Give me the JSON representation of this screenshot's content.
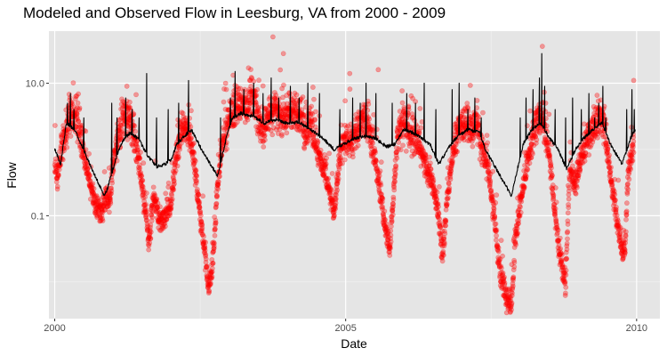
{
  "chart_data": {
    "type": "scatter",
    "title": "Modeled and Observed Flow in Leesburg, VA from 2000 - 2009",
    "xlabel": "Date",
    "ylabel": "Flow",
    "y_scale": "log10",
    "xlim": [
      1999.9,
      2010.4
    ],
    "ylim": [
      0.0028,
      61
    ],
    "x_ticks": [
      {
        "value": 2000,
        "label": "2000"
      },
      {
        "value": 2005,
        "label": "2005"
      },
      {
        "value": 2010,
        "label": "2010"
      }
    ],
    "y_ticks": [
      {
        "value": 0.1,
        "label": "0.1"
      },
      {
        "value": 10,
        "label": "10.0"
      }
    ],
    "grid": true,
    "panel_background": "#e5e5e5",
    "colors": {
      "observed_points": "#ff0000",
      "modeled_line": "#000000"
    },
    "series": [
      {
        "kind": "points",
        "opacity": 0.35,
        "description_of_pattern": "daily observations",
        "anchors": [
          {
            "x": 2000.0,
            "y": 0.6
          },
          {
            "x": 2000.05,
            "y": 0.35
          },
          {
            "x": 2000.12,
            "y": 1.2
          },
          {
            "x": 2000.2,
            "y": 2.0
          },
          {
            "x": 2000.28,
            "y": 4.0
          },
          {
            "x": 2000.4,
            "y": 2.5
          },
          {
            "x": 2000.5,
            "y": 0.8
          },
          {
            "x": 2000.6,
            "y": 0.3
          },
          {
            "x": 2000.7,
            "y": 0.15
          },
          {
            "x": 2000.8,
            "y": 0.12
          },
          {
            "x": 2000.88,
            "y": 0.2
          },
          {
            "x": 2000.95,
            "y": 0.15
          },
          {
            "x": 2001.0,
            "y": 0.6
          },
          {
            "x": 2001.1,
            "y": 1.5
          },
          {
            "x": 2001.2,
            "y": 3.5
          },
          {
            "x": 2001.3,
            "y": 3.0
          },
          {
            "x": 2001.4,
            "y": 1.2
          },
          {
            "x": 2001.5,
            "y": 0.3
          },
          {
            "x": 2001.62,
            "y": 0.04
          },
          {
            "x": 2001.7,
            "y": 0.2
          },
          {
            "x": 2001.8,
            "y": 0.08
          },
          {
            "x": 2001.9,
            "y": 0.1
          },
          {
            "x": 2002.0,
            "y": 0.15
          },
          {
            "x": 2002.1,
            "y": 1.0
          },
          {
            "x": 2002.2,
            "y": 2.5
          },
          {
            "x": 2002.3,
            "y": 1.8
          },
          {
            "x": 2002.4,
            "y": 0.6
          },
          {
            "x": 2002.5,
            "y": 0.1
          },
          {
            "x": 2002.6,
            "y": 0.02
          },
          {
            "x": 2002.65,
            "y": 0.008
          },
          {
            "x": 2002.72,
            "y": 0.02
          },
          {
            "x": 2002.8,
            "y": 0.3
          },
          {
            "x": 2002.9,
            "y": 1.5
          },
          {
            "x": 2003.0,
            "y": 3.0
          },
          {
            "x": 2003.15,
            "y": 5.0
          },
          {
            "x": 2003.3,
            "y": 4.5
          },
          {
            "x": 2003.4,
            "y": 6.0
          },
          {
            "x": 2003.5,
            "y": 3.0
          },
          {
            "x": 2003.6,
            "y": 2.0
          },
          {
            "x": 2003.7,
            "y": 3.5
          },
          {
            "x": 2003.8,
            "y": 4.0
          },
          {
            "x": 2003.9,
            "y": 2.5
          },
          {
            "x": 2004.0,
            "y": 3.5
          },
          {
            "x": 2004.1,
            "y": 4.0
          },
          {
            "x": 2004.2,
            "y": 3.0
          },
          {
            "x": 2004.3,
            "y": 2.0
          },
          {
            "x": 2004.4,
            "y": 2.5
          },
          {
            "x": 2004.5,
            "y": 1.2
          },
          {
            "x": 2004.6,
            "y": 0.6
          },
          {
            "x": 2004.7,
            "y": 0.3
          },
          {
            "x": 2004.8,
            "y": 0.1
          },
          {
            "x": 2004.9,
            "y": 0.8
          },
          {
            "x": 2005.0,
            "y": 1.5
          },
          {
            "x": 2005.1,
            "y": 1.2
          },
          {
            "x": 2005.2,
            "y": 2.0
          },
          {
            "x": 2005.3,
            "y": 3.0
          },
          {
            "x": 2005.4,
            "y": 2.0
          },
          {
            "x": 2005.5,
            "y": 0.8
          },
          {
            "x": 2005.6,
            "y": 0.2
          },
          {
            "x": 2005.7,
            "y": 0.05
          },
          {
            "x": 2005.76,
            "y": 0.035
          },
          {
            "x": 2005.82,
            "y": 0.2
          },
          {
            "x": 2005.9,
            "y": 2.0
          },
          {
            "x": 2006.0,
            "y": 2.5
          },
          {
            "x": 2006.1,
            "y": 2.0
          },
          {
            "x": 2006.2,
            "y": 1.5
          },
          {
            "x": 2006.3,
            "y": 1.0
          },
          {
            "x": 2006.4,
            "y": 0.5
          },
          {
            "x": 2006.5,
            "y": 0.3
          },
          {
            "x": 2006.6,
            "y": 0.1
          },
          {
            "x": 2006.66,
            "y": 0.02
          },
          {
            "x": 2006.75,
            "y": 0.2
          },
          {
            "x": 2006.85,
            "y": 1.0
          },
          {
            "x": 2006.95,
            "y": 2.0
          },
          {
            "x": 2007.05,
            "y": 2.5
          },
          {
            "x": 2007.15,
            "y": 2.0
          },
          {
            "x": 2007.25,
            "y": 3.0
          },
          {
            "x": 2007.35,
            "y": 1.0
          },
          {
            "x": 2007.45,
            "y": 0.5
          },
          {
            "x": 2007.55,
            "y": 0.1
          },
          {
            "x": 2007.65,
            "y": 0.015
          },
          {
            "x": 2007.75,
            "y": 0.006
          },
          {
            "x": 2007.85,
            "y": 0.0045
          },
          {
            "x": 2007.92,
            "y": 0.05
          },
          {
            "x": 2008.0,
            "y": 0.15
          },
          {
            "x": 2008.1,
            "y": 0.5
          },
          {
            "x": 2008.2,
            "y": 1.5
          },
          {
            "x": 2008.3,
            "y": 3.0
          },
          {
            "x": 2008.4,
            "y": 2.5
          },
          {
            "x": 2008.5,
            "y": 0.8
          },
          {
            "x": 2008.6,
            "y": 0.1
          },
          {
            "x": 2008.7,
            "y": 0.02
          },
          {
            "x": 2008.78,
            "y": 0.01
          },
          {
            "x": 2008.85,
            "y": 0.5
          },
          {
            "x": 2008.95,
            "y": 0.3
          },
          {
            "x": 2009.05,
            "y": 0.8
          },
          {
            "x": 2009.15,
            "y": 1.5
          },
          {
            "x": 2009.25,
            "y": 2.0
          },
          {
            "x": 2009.35,
            "y": 3.5
          },
          {
            "x": 2009.45,
            "y": 2.0
          },
          {
            "x": 2009.55,
            "y": 0.4
          },
          {
            "x": 2009.65,
            "y": 0.1
          },
          {
            "x": 2009.75,
            "y": 0.03
          },
          {
            "x": 2009.8,
            "y": 0.03
          },
          {
            "x": 2009.85,
            "y": 0.4
          },
          {
            "x": 2009.95,
            "y": 1.2
          }
        ],
        "outliers": [
          {
            "x": 2003.75,
            "y": 50
          },
          {
            "x": 2003.33,
            "y": 17
          },
          {
            "x": 2003.93,
            "y": 28
          },
          {
            "x": 2005.07,
            "y": 14
          },
          {
            "x": 2005.56,
            "y": 16
          },
          {
            "x": 2008.38,
            "y": 36
          },
          {
            "x": 2001.24,
            "y": 9
          },
          {
            "x": 2009.95,
            "y": 11
          }
        ]
      },
      {
        "kind": "line",
        "description_of_pattern": "modeled flow",
        "baseline": [
          {
            "x": 2000.0,
            "y": 1.0
          },
          {
            "x": 2000.05,
            "y": 0.8
          },
          {
            "x": 2000.1,
            "y": 0.6
          },
          {
            "x": 2000.2,
            "y": 2.5
          },
          {
            "x": 2000.35,
            "y": 2.0
          },
          {
            "x": 2000.45,
            "y": 1.2
          },
          {
            "x": 2000.85,
            "y": 0.2
          },
          {
            "x": 2000.9,
            "y": 0.25
          },
          {
            "x": 2001.0,
            "y": 0.5
          },
          {
            "x": 2001.1,
            "y": 1.0
          },
          {
            "x": 2001.2,
            "y": 1.5
          },
          {
            "x": 2001.3,
            "y": 1.8
          },
          {
            "x": 2001.45,
            "y": 1.4
          },
          {
            "x": 2001.6,
            "y": 0.8
          },
          {
            "x": 2001.75,
            "y": 0.55
          },
          {
            "x": 2001.9,
            "y": 0.6
          },
          {
            "x": 2002.0,
            "y": 0.7
          },
          {
            "x": 2002.1,
            "y": 1.2
          },
          {
            "x": 2002.2,
            "y": 1.5
          },
          {
            "x": 2002.35,
            "y": 2.0
          },
          {
            "x": 2002.55,
            "y": 0.9
          },
          {
            "x": 2002.8,
            "y": 0.4
          },
          {
            "x": 2002.95,
            "y": 1.5
          },
          {
            "x": 2003.05,
            "y": 3.0
          },
          {
            "x": 2003.2,
            "y": 3.5
          },
          {
            "x": 2003.4,
            "y": 3.2
          },
          {
            "x": 2003.6,
            "y": 2.5
          },
          {
            "x": 2003.8,
            "y": 2.8
          },
          {
            "x": 2004.0,
            "y": 2.5
          },
          {
            "x": 2004.2,
            "y": 2.6
          },
          {
            "x": 2004.4,
            "y": 2.0
          },
          {
            "x": 2004.6,
            "y": 1.5
          },
          {
            "x": 2004.8,
            "y": 1.0
          },
          {
            "x": 2004.95,
            "y": 1.2
          },
          {
            "x": 2005.1,
            "y": 1.4
          },
          {
            "x": 2005.3,
            "y": 1.6
          },
          {
            "x": 2005.5,
            "y": 1.5
          },
          {
            "x": 2005.7,
            "y": 1.1
          },
          {
            "x": 2005.85,
            "y": 1.2
          },
          {
            "x": 2006.0,
            "y": 2.0
          },
          {
            "x": 2006.15,
            "y": 1.8
          },
          {
            "x": 2006.3,
            "y": 1.5
          },
          {
            "x": 2006.45,
            "y": 1.2
          },
          {
            "x": 2006.6,
            "y": 0.6
          },
          {
            "x": 2006.75,
            "y": 1.0
          },
          {
            "x": 2006.9,
            "y": 1.5
          },
          {
            "x": 2007.1,
            "y": 2.0
          },
          {
            "x": 2007.3,
            "y": 1.8
          },
          {
            "x": 2007.4,
            "y": 1.0
          },
          {
            "x": 2007.85,
            "y": 0.2
          },
          {
            "x": 2007.95,
            "y": 0.5
          },
          {
            "x": 2008.05,
            "y": 1.2
          },
          {
            "x": 2008.2,
            "y": 2.0
          },
          {
            "x": 2008.35,
            "y": 2.5
          },
          {
            "x": 2008.5,
            "y": 1.5
          },
          {
            "x": 2008.65,
            "y": 1.0
          },
          {
            "x": 2008.8,
            "y": 0.5
          },
          {
            "x": 2008.95,
            "y": 1.0
          },
          {
            "x": 2009.1,
            "y": 1.5
          },
          {
            "x": 2009.25,
            "y": 2.0
          },
          {
            "x": 2009.4,
            "y": 2.5
          },
          {
            "x": 2009.55,
            "y": 1.2
          },
          {
            "x": 2009.75,
            "y": 0.6
          },
          {
            "x": 2009.9,
            "y": 1.5
          },
          {
            "x": 2009.98,
            "y": 2.0
          }
        ],
        "peaks": [
          {
            "x": 2000.22,
            "y": 5
          },
          {
            "x": 2000.27,
            "y": 7
          },
          {
            "x": 2000.33,
            "y": 4
          },
          {
            "x": 2000.5,
            "y": 3
          },
          {
            "x": 2000.98,
            "y": 5
          },
          {
            "x": 2001.07,
            "y": 3
          },
          {
            "x": 2001.22,
            "y": 6
          },
          {
            "x": 2001.33,
            "y": 4
          },
          {
            "x": 2001.45,
            "y": 3
          },
          {
            "x": 2001.58,
            "y": 14
          },
          {
            "x": 2001.75,
            "y": 3
          },
          {
            "x": 2001.95,
            "y": 4
          },
          {
            "x": 2002.13,
            "y": 5
          },
          {
            "x": 2002.3,
            "y": 11
          },
          {
            "x": 2002.85,
            "y": 3
          },
          {
            "x": 2003.02,
            "y": 6
          },
          {
            "x": 2003.1,
            "y": 15
          },
          {
            "x": 2003.25,
            "y": 8
          },
          {
            "x": 2003.42,
            "y": 10
          },
          {
            "x": 2003.58,
            "y": 7
          },
          {
            "x": 2003.72,
            "y": 12
          },
          {
            "x": 2003.85,
            "y": 6
          },
          {
            "x": 2004.05,
            "y": 9
          },
          {
            "x": 2004.2,
            "y": 6
          },
          {
            "x": 2004.35,
            "y": 10
          },
          {
            "x": 2004.55,
            "y": 7
          },
          {
            "x": 2004.9,
            "y": 4
          },
          {
            "x": 2005.12,
            "y": 6
          },
          {
            "x": 2005.25,
            "y": 5
          },
          {
            "x": 2005.35,
            "y": 10
          },
          {
            "x": 2005.52,
            "y": 7
          },
          {
            "x": 2005.8,
            "y": 5
          },
          {
            "x": 2006.05,
            "y": 7
          },
          {
            "x": 2006.2,
            "y": 5
          },
          {
            "x": 2006.35,
            "y": 10
          },
          {
            "x": 2006.55,
            "y": 4
          },
          {
            "x": 2006.83,
            "y": 8
          },
          {
            "x": 2006.95,
            "y": 10
          },
          {
            "x": 2007.1,
            "y": 4
          },
          {
            "x": 2007.22,
            "y": 6
          },
          {
            "x": 2007.33,
            "y": 3
          },
          {
            "x": 2008.0,
            "y": 3
          },
          {
            "x": 2008.1,
            "y": 6
          },
          {
            "x": 2008.22,
            "y": 8
          },
          {
            "x": 2008.33,
            "y": 12
          },
          {
            "x": 2008.37,
            "y": 28
          },
          {
            "x": 2008.42,
            "y": 9
          },
          {
            "x": 2008.6,
            "y": 4
          },
          {
            "x": 2008.78,
            "y": 3
          },
          {
            "x": 2008.9,
            "y": 6
          },
          {
            "x": 2009.05,
            "y": 4
          },
          {
            "x": 2009.18,
            "y": 7
          },
          {
            "x": 2009.28,
            "y": 3
          },
          {
            "x": 2009.35,
            "y": 5
          },
          {
            "x": 2009.42,
            "y": 9
          },
          {
            "x": 2009.47,
            "y": 3
          },
          {
            "x": 2009.83,
            "y": 4
          },
          {
            "x": 2009.92,
            "y": 8
          },
          {
            "x": 2009.96,
            "y": 4
          }
        ]
      }
    ]
  }
}
